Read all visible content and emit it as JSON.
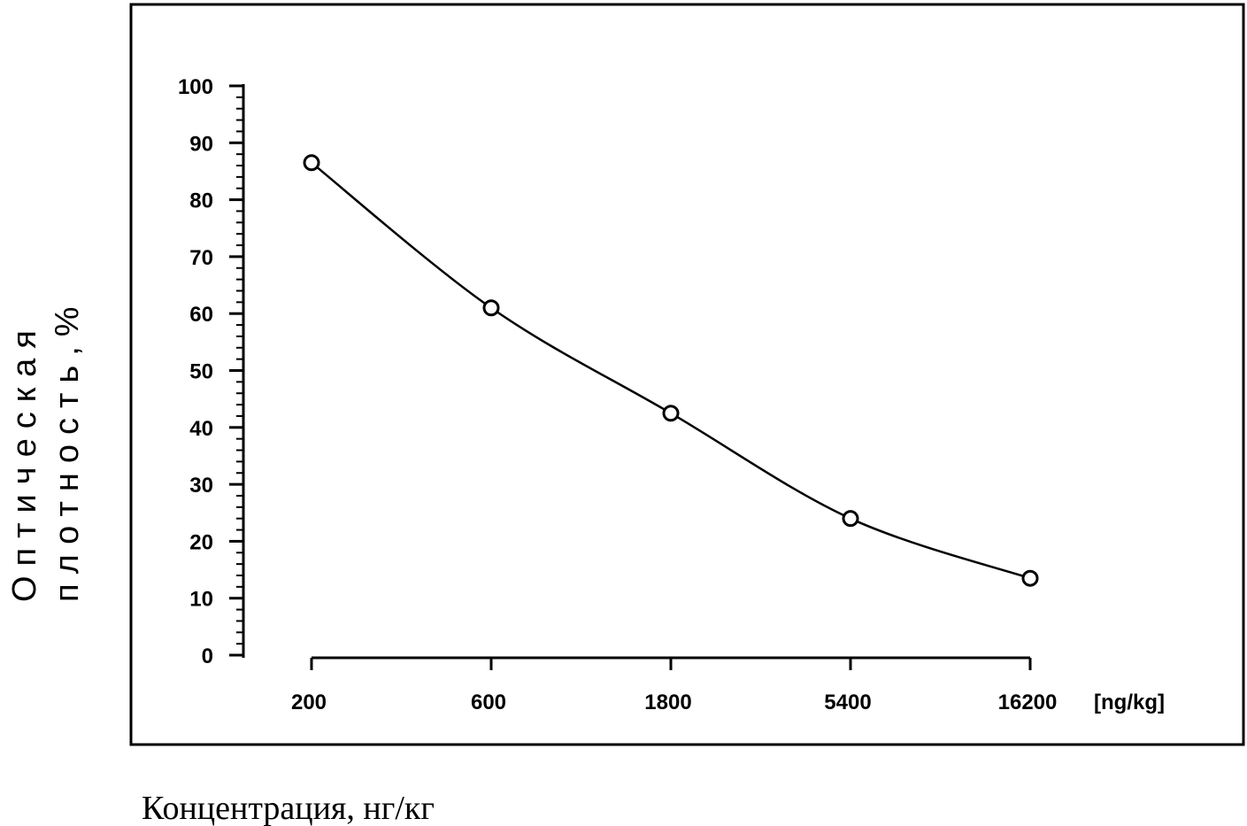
{
  "chart_data": {
    "type": "line",
    "categories": [
      "200",
      "600",
      "1800",
      "5400",
      "16200"
    ],
    "series": [
      {
        "values": [
          86.5,
          61,
          42.5,
          24,
          13.5
        ]
      }
    ],
    "x_unit": "[ng/kg]",
    "y_ticks": [
      "0",
      "10",
      "20",
      "30",
      "40",
      "50",
      "60",
      "70",
      "80",
      "90",
      "100"
    ],
    "ylim": [
      0,
      100
    ],
    "ylabel_line1": "Оптическая",
    "ylabel_line2": "плотность,%",
    "xlabel": "Концентрация, нг/кг",
    "x_scale": "log",
    "grid": false,
    "legend": "none",
    "markers": "open-circle",
    "line_style": "smooth",
    "frame": true
  }
}
